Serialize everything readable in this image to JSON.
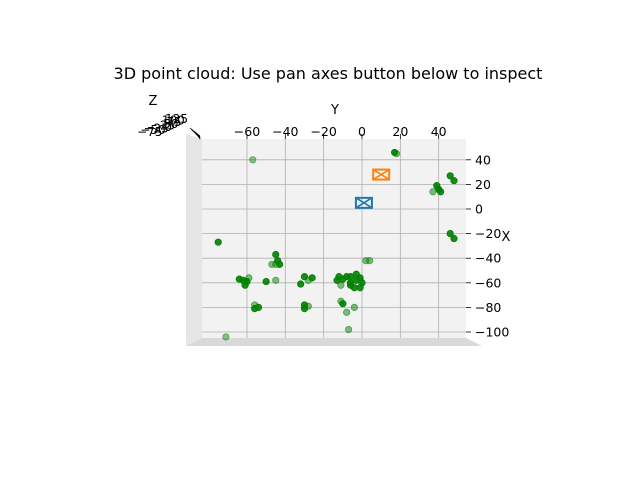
{
  "chart_data": {
    "type": "scatter",
    "projection": "3d",
    "title": "3D point cloud: Use pan axes button below to inspect",
    "xlabel": "X",
    "ylabel": "Y",
    "zlabel": "Z",
    "ylim": [
      -75,
      55
    ],
    "xlim": [
      -105,
      55
    ],
    "y_ticks": [
      "−60",
      "−40",
      "−20",
      "0",
      "20",
      "40"
    ],
    "x_ticks": [
      "40",
      "20",
      "0",
      "−20",
      "−40",
      "−60",
      "−80",
      "−100"
    ],
    "z_ticks": [
      "125",
      "100",
      "75",
      "50",
      "25",
      "0",
      "−25",
      "−50",
      "−75"
    ],
    "grid": true,
    "background_color": "#f2f2f2",
    "point_color": "#008000",
    "camera_markers": [
      {
        "color": "#ff7f0e",
        "y": 10,
        "x": 28
      },
      {
        "color": "#1f77b4",
        "y": 1,
        "x": 5
      }
    ],
    "points": [
      {
        "y": -57,
        "x": 40,
        "a": 0.45
      },
      {
        "y": 17,
        "x": 46,
        "a": 0.9
      },
      {
        "y": 18,
        "x": 45,
        "a": 0.5
      },
      {
        "y": 46,
        "x": 27,
        "a": 0.9
      },
      {
        "y": 48,
        "x": 23,
        "a": 0.9
      },
      {
        "y": 39,
        "x": 19,
        "a": 0.9
      },
      {
        "y": 40,
        "x": 16,
        "a": 0.9
      },
      {
        "y": 41,
        "x": 14,
        "a": 0.9
      },
      {
        "y": 37,
        "x": 14,
        "a": 0.5
      },
      {
        "y": 46,
        "x": -20,
        "a": 0.9
      },
      {
        "y": 48,
        "x": -24,
        "a": 0.9
      },
      {
        "y": -75,
        "x": -27,
        "a": 0.9
      },
      {
        "y": -45,
        "x": -37,
        "a": 0.9
      },
      {
        "y": -44,
        "x": -42,
        "a": 0.9
      },
      {
        "y": -47,
        "x": -45,
        "a": 0.5
      },
      {
        "y": -45,
        "x": -45,
        "a": 0.5
      },
      {
        "y": -43,
        "x": -45,
        "a": 0.9
      },
      {
        "y": 2,
        "x": -42,
        "a": 0.5
      },
      {
        "y": 4,
        "x": -42,
        "a": 0.5
      },
      {
        "y": -64,
        "x": -57,
        "a": 0.9
      },
      {
        "y": -62,
        "x": -58,
        "a": 0.9
      },
      {
        "y": -60,
        "x": -59,
        "a": 0.9
      },
      {
        "y": -61,
        "x": -62,
        "a": 0.9
      },
      {
        "y": -59,
        "x": -56,
        "a": 0.5
      },
      {
        "y": -50,
        "x": -59,
        "a": 0.9
      },
      {
        "y": -45,
        "x": -58,
        "a": 0.5
      },
      {
        "y": -30,
        "x": -55,
        "a": 0.9
      },
      {
        "y": -26,
        "x": -56,
        "a": 0.9
      },
      {
        "y": -28,
        "x": -58,
        "a": 0.5
      },
      {
        "y": -32,
        "x": -61,
        "a": 0.9
      },
      {
        "y": -12,
        "x": -55,
        "a": 0.9
      },
      {
        "y": -10,
        "x": -57,
        "a": 0.9
      },
      {
        "y": -13,
        "x": -58,
        "a": 0.9
      },
      {
        "y": -8,
        "x": -55,
        "a": 0.9
      },
      {
        "y": -6,
        "x": -60,
        "a": 0.9
      },
      {
        "y": -6,
        "x": -55,
        "a": 0.9
      },
      {
        "y": -3,
        "x": -58,
        "a": 0.9
      },
      {
        "y": -1,
        "x": -56,
        "a": 0.9
      },
      {
        "y": 0,
        "x": -60,
        "a": 0.9
      },
      {
        "y": -1,
        "x": -64,
        "a": 0.9
      },
      {
        "y": -4,
        "x": -64,
        "a": 0.9
      },
      {
        "y": -6,
        "x": -62,
        "a": 0.9
      },
      {
        "y": -3,
        "x": -53,
        "a": 0.9
      },
      {
        "y": -11,
        "x": -62,
        "a": 0.5
      },
      {
        "y": -56,
        "x": -78,
        "a": 0.5
      },
      {
        "y": -54,
        "x": -80,
        "a": 0.9
      },
      {
        "y": -56,
        "x": -81,
        "a": 0.9
      },
      {
        "y": -30,
        "x": -78,
        "a": 0.9
      },
      {
        "y": -30,
        "x": -81,
        "a": 0.9
      },
      {
        "y": -28,
        "x": -79,
        "a": 0.5
      },
      {
        "y": -11,
        "x": -75,
        "a": 0.5
      },
      {
        "y": -10,
        "x": -77,
        "a": 0.9
      },
      {
        "y": -8,
        "x": -84,
        "a": 0.5
      },
      {
        "y": -4,
        "x": -80,
        "a": 0.5
      },
      {
        "y": -7,
        "x": -98,
        "a": 0.5
      },
      {
        "y": -71,
        "x": -104,
        "a": 0.45
      }
    ]
  }
}
